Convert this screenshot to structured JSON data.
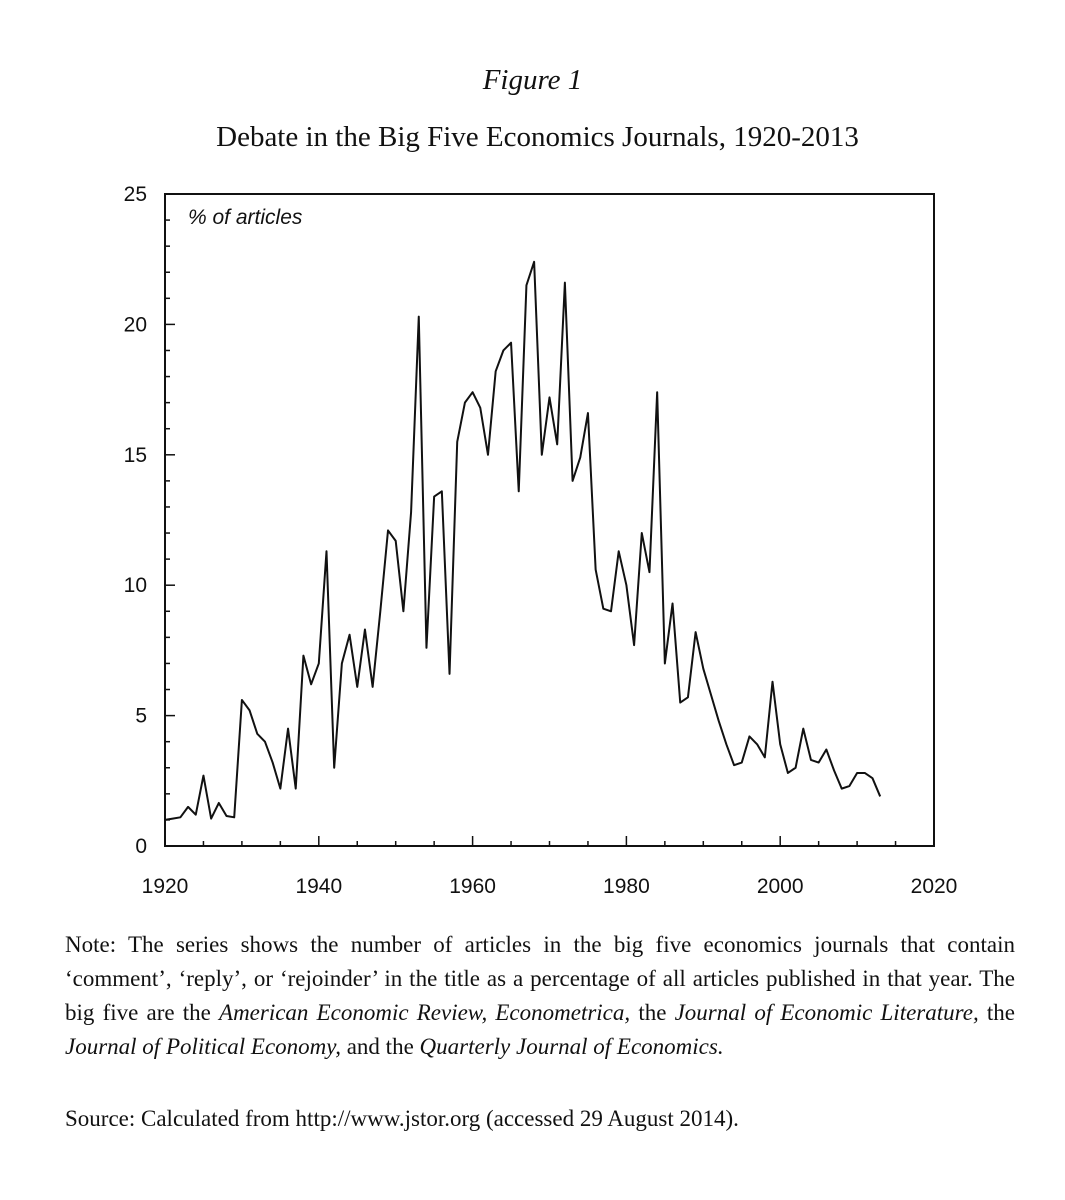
{
  "figure_label": "Figure 1",
  "note": {
    "p1": "Note: The series shows the number of articles in the big five economics journals that contain ‘comment’, ‘reply’, or ‘rejoinder’ in the title as a percentage of all articles published in that year. The big five are the ",
    "j1": "American Economic Review, Econometrica,",
    "p2": " the ",
    "j2": "Journal of Economic Literature,",
    "p3": " the ",
    "j3": "Journal of Political Economy,",
    "p4": " and the ",
    "j4": "Quarterly Journal of Economics."
  },
  "source": "Source: Calculated from http://www.jstor.org (accessed 29 August 2014).",
  "chart_data": {
    "type": "line",
    "title": "Debate in the Big Five Economics Journals, 1920-2013",
    "ylabel": "% of articles",
    "xlim": [
      1920,
      2020
    ],
    "ylim": [
      0,
      25
    ],
    "x_ticks": [
      1920,
      1940,
      1960,
      1980,
      2000,
      2020
    ],
    "y_ticks": [
      0,
      5,
      10,
      15,
      20,
      25
    ],
    "grid": false,
    "legend": "none",
    "series": [
      {
        "x": [
          1920,
          1921,
          1922,
          1923,
          1924,
          1925,
          1926,
          1927,
          1928,
          1929,
          1930,
          1931,
          1932,
          1933,
          1934,
          1935,
          1936,
          1937,
          1938,
          1939,
          1940,
          1941,
          1942,
          1943,
          1944,
          1945,
          1946,
          1947,
          1948,
          1949,
          1950,
          1951,
          1952,
          1953,
          1954,
          1955,
          1956,
          1957,
          1958,
          1959,
          1960,
          1961,
          1962,
          1963,
          1964,
          1965,
          1966,
          1967,
          1968,
          1969,
          1970,
          1971,
          1972,
          1973,
          1974,
          1975,
          1976,
          1977,
          1978,
          1979,
          1980,
          1981,
          1982,
          1983,
          1984,
          1985,
          1986,
          1987,
          1988,
          1989,
          1990,
          1991,
          1992,
          1993,
          1994,
          1995,
          1996,
          1997,
          1998,
          1999,
          2000,
          2001,
          2002,
          2003,
          2004,
          2005,
          2006,
          2007,
          2008,
          2009,
          2010,
          2011,
          2012,
          2013
        ],
        "y": [
          1.0,
          1.05,
          1.1,
          1.5,
          1.2,
          2.7,
          1.05,
          1.65,
          1.15,
          1.1,
          5.6,
          5.2,
          4.3,
          4.0,
          3.2,
          2.2,
          4.5,
          2.2,
          7.3,
          6.2,
          7.0,
          11.3,
          3.0,
          7.0,
          8.1,
          6.1,
          8.3,
          6.1,
          9.0,
          12.1,
          11.7,
          9.0,
          12.8,
          20.3,
          7.6,
          13.4,
          13.6,
          6.6,
          15.5,
          17.0,
          17.4,
          16.8,
          15.0,
          18.2,
          19.0,
          19.3,
          13.6,
          21.5,
          22.4,
          15.0,
          17.2,
          15.4,
          21.6,
          14.0,
          14.9,
          16.6,
          10.6,
          9.1,
          9.0,
          11.3,
          10.0,
          7.7,
          12.0,
          10.5,
          17.4,
          7.0,
          9.3,
          5.5,
          5.7,
          8.2,
          6.8,
          5.8,
          4.8,
          3.9,
          3.1,
          3.2,
          4.2,
          3.9,
          3.4,
          6.3,
          3.9,
          2.8,
          3.0,
          4.5,
          3.3,
          3.2,
          3.7,
          2.9,
          2.2,
          2.3,
          2.8,
          2.8,
          2.6,
          1.9
        ]
      }
    ]
  }
}
